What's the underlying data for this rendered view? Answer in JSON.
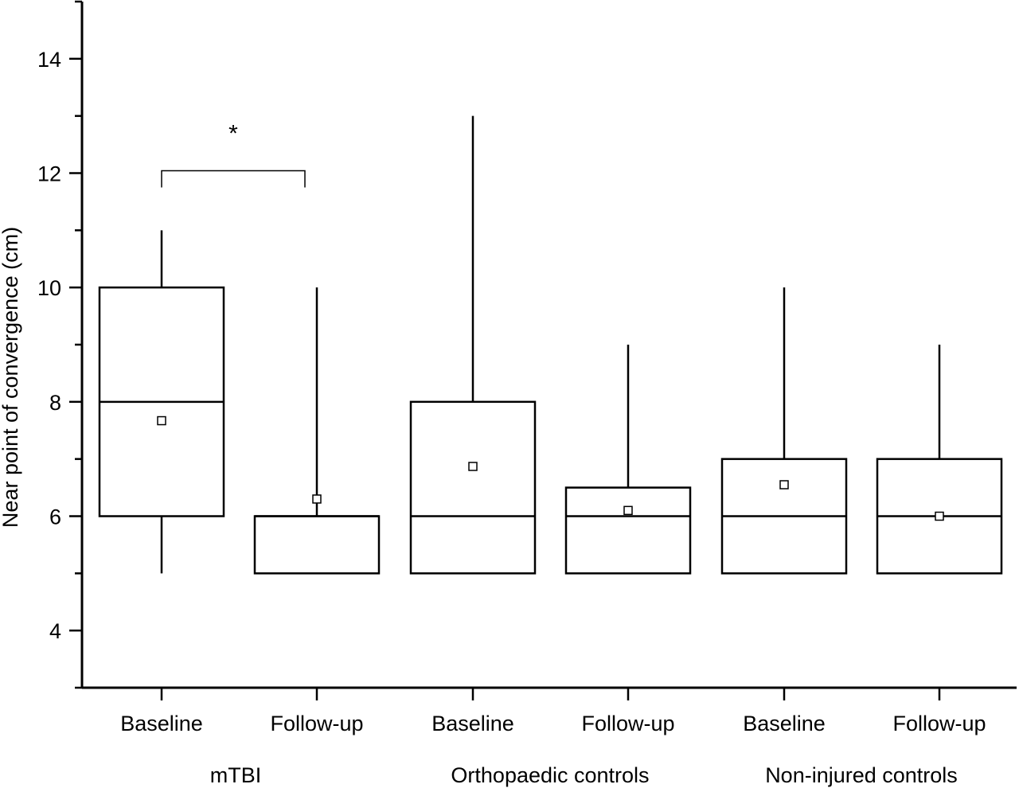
{
  "chart_data": {
    "type": "box",
    "ylabel": "Near point of convergence (cm)",
    "xlabel": "",
    "ylim": [
      3,
      15
    ],
    "yticks": [
      4,
      6,
      8,
      10,
      12,
      14
    ],
    "grid": false,
    "boxes": [
      {
        "category": "Baseline",
        "group": "mTBI",
        "whisker_low": 5,
        "q1": 6,
        "median": 8,
        "q3": 10,
        "whisker_high": 11,
        "mean": 7.67
      },
      {
        "category": "Follow-up",
        "group": "mTBI",
        "whisker_low": 5,
        "q1": 5,
        "median": 6,
        "q3": 6,
        "whisker_high": 10,
        "mean": 6.3
      },
      {
        "category": "Baseline",
        "group": "Orthopaedic controls",
        "whisker_low": 5,
        "q1": 5,
        "median": 6,
        "q3": 8,
        "whisker_high": 13,
        "mean": 6.87
      },
      {
        "category": "Follow-up",
        "group": "Orthopaedic controls",
        "whisker_low": 5,
        "q1": 5,
        "median": 6,
        "q3": 6.5,
        "whisker_high": 9,
        "mean": 6.1
      },
      {
        "category": "Baseline",
        "group": "Non-injured controls",
        "whisker_low": 5,
        "q1": 5,
        "median": 6,
        "q3": 7,
        "whisker_high": 10,
        "mean": 6.55
      },
      {
        "category": "Follow-up",
        "group": "Non-injured controls",
        "whisker_low": 5,
        "q1": 5,
        "median": 6,
        "q3": 7,
        "whisker_high": 9,
        "mean": 6.0
      }
    ],
    "groups": [
      "mTBI",
      "Orthopaedic controls",
      "Non-injured controls"
    ],
    "annotations": [
      {
        "text": "*",
        "between": [
          0,
          1
        ],
        "y": 12
      }
    ]
  }
}
